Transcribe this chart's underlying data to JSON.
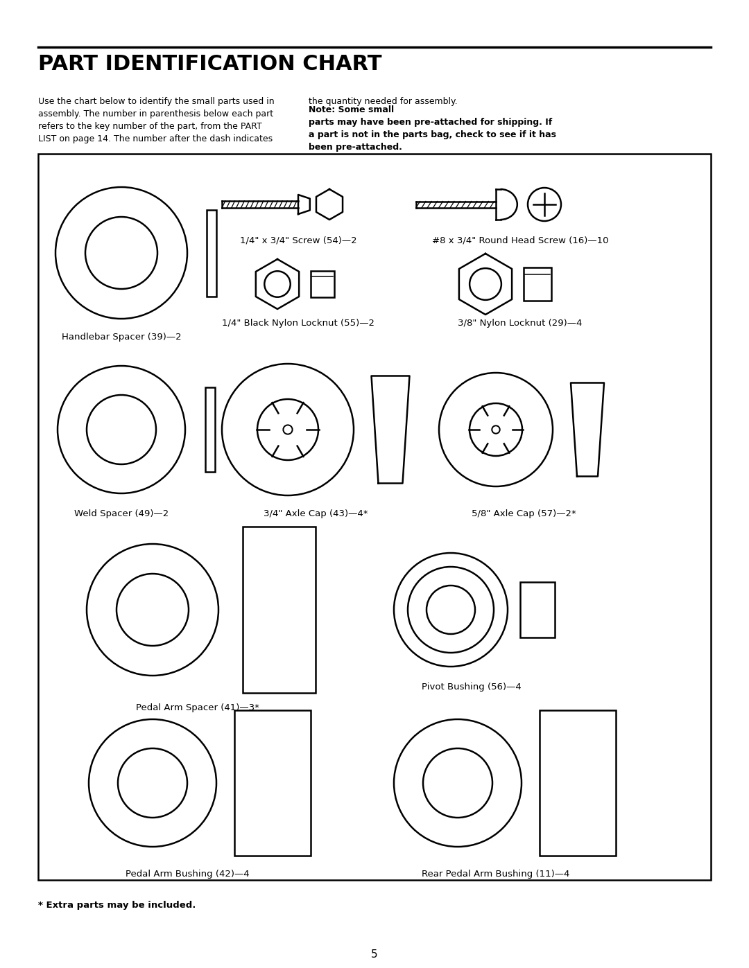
{
  "title": "PART IDENTIFICATION CHART",
  "intro_left": "Use the chart below to identify the small parts used in\nassembly. The number in parenthesis below each part\nrefers to the key number of the part, from the PART\nLIST on page 14. The number after the dash indicates",
  "intro_right_normal": "the quantity needed for assembly. ",
  "intro_right_bold": "Note: Some small\nparts may have been pre-attached for shipping. If\na part is not in the parts bag, check to see if it has\nbeen pre-attached.",
  "footer": "* Extra parts may be included.",
  "page_number": "5",
  "parts": [
    {
      "label": "Handlebar Spacer (39)—2",
      "row": 1,
      "col": 1
    },
    {
      "label": "1/4\" x 3/4\" Screw (54)—2",
      "row": 1,
      "col": 2
    },
    {
      "label": "#8 x 3/4\" Round Head Screw (16)—10",
      "row": 1,
      "col": 3
    },
    {
      "label": "1/4\" Black Nylon Locknut (55)—2",
      "row": 1,
      "col": 2
    },
    {
      "label": "3/8\" Nylon Locknut (29)—4",
      "row": 1,
      "col": 3
    },
    {
      "label": "Weld Spacer (49)—2",
      "row": 2,
      "col": 1
    },
    {
      "label": "3/4\" Axle Cap (43)—4*",
      "row": 2,
      "col": 2
    },
    {
      "label": "5/8\" Axle Cap (57)—2*",
      "row": 2,
      "col": 3
    },
    {
      "label": "Pedal Arm Spacer (41)—3*",
      "row": 3,
      "col": 1
    },
    {
      "label": "Pivot Bushing (56)—4",
      "row": 3,
      "col": 2
    },
    {
      "label": "Pedal Arm Bushing (42)—4",
      "row": 4,
      "col": 1
    },
    {
      "label": "Rear Pedal Arm Bushing (11)—4",
      "row": 4,
      "col": 2
    }
  ],
  "bg_color": "#ffffff",
  "text_color": "#000000",
  "line_color": "#000000"
}
